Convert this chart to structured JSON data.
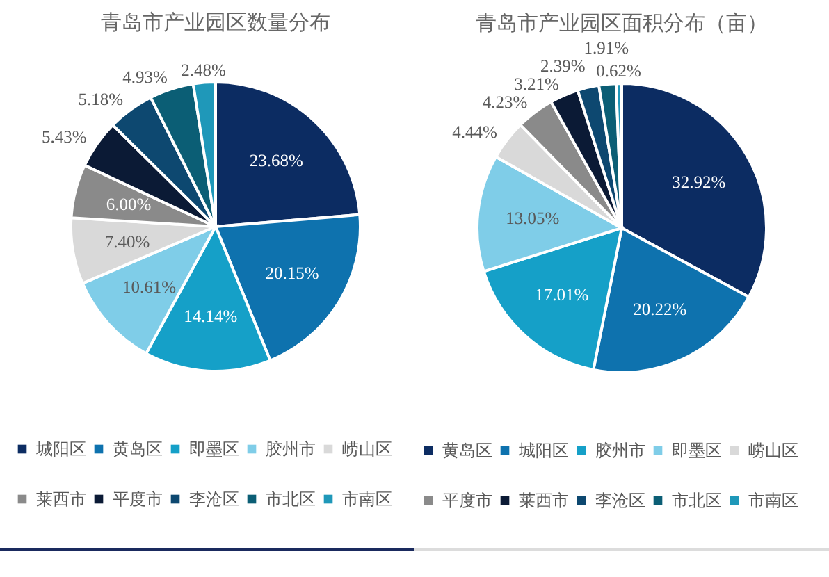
{
  "chart_data": [
    {
      "type": "pie",
      "title": "青岛市产业园区数量分布",
      "categories": [
        "城阳区",
        "黄岛区",
        "即墨区",
        "胶州市",
        "崂山区",
        "莱西市",
        "平度市",
        "李沧区",
        "市北区",
        "市南区"
      ],
      "values": [
        23.68,
        20.15,
        14.14,
        10.61,
        7.4,
        6.0,
        5.43,
        5.18,
        4.93,
        2.48
      ],
      "colors": [
        "#0c2c62",
        "#0e72ae",
        "#15a0c8",
        "#7fcde8",
        "#d9d9d9",
        "#8a8a8a",
        "#0b1a35",
        "#0d4870",
        "#0b5e75",
        "#1f98b9"
      ],
      "value_labels": [
        "23.68%",
        "20.15%",
        "14.14%",
        "10.61%",
        "7.40%",
        "6.00%",
        "5.43%",
        "5.18%",
        "4.93%",
        "2.48%"
      ],
      "legend": "bottom"
    },
    {
      "type": "pie",
      "title": "青岛市产业园区面积分布（亩）",
      "categories": [
        "黄岛区",
        "城阳区",
        "胶州市",
        "即墨区",
        "崂山区",
        "平度市",
        "莱西市",
        "李沧区",
        "市北区",
        "市南区"
      ],
      "values": [
        32.92,
        20.22,
        17.01,
        13.05,
        4.44,
        4.23,
        3.21,
        2.39,
        1.91,
        0.62
      ],
      "colors": [
        "#0c2c62",
        "#0e72ae",
        "#15a0c8",
        "#7fcde8",
        "#d9d9d9",
        "#8a8a8a",
        "#0b1a35",
        "#0d4870",
        "#0b5e75",
        "#1f98b9"
      ],
      "value_labels": [
        "32.92%",
        "20.22%",
        "17.01%",
        "13.05%",
        "4.44%",
        "4.23%",
        "3.21%",
        "2.39%",
        "1.91%",
        "0.62%"
      ],
      "legend": "bottom"
    }
  ]
}
